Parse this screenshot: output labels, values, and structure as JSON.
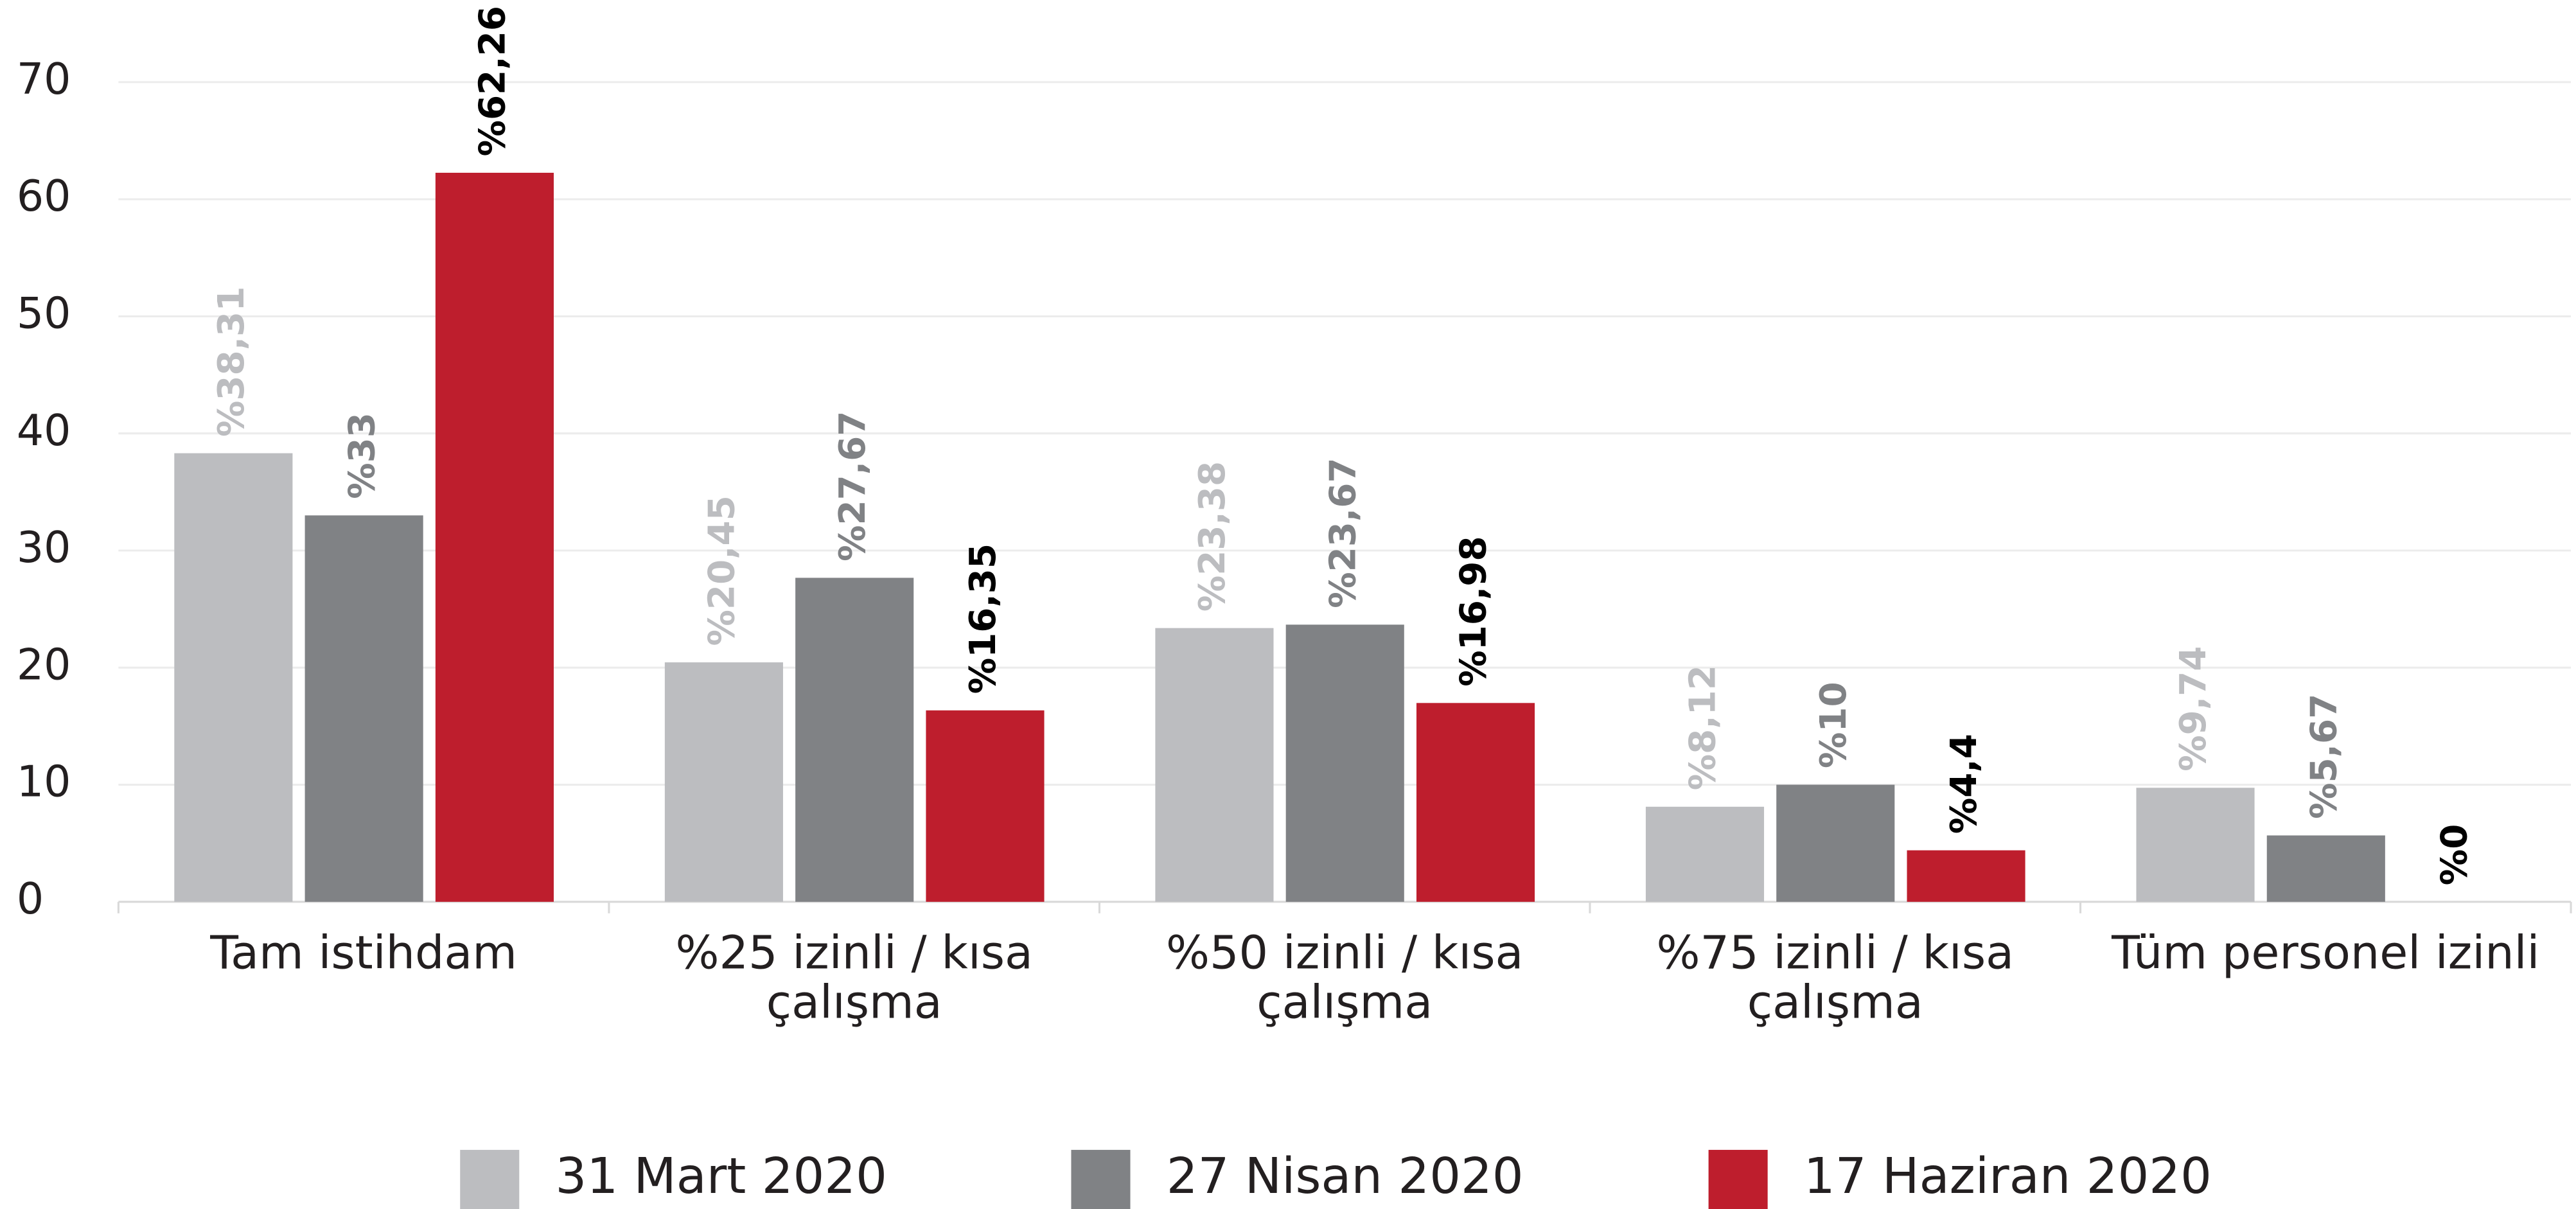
{
  "chart_data": {
    "type": "bar",
    "categories": [
      [
        "Tam istihdam"
      ],
      [
        "%25 izinli / kısa",
        "çalışma"
      ],
      [
        "%50 izinli / kısa",
        "çalışma"
      ],
      [
        "%75 izinli / kısa",
        "çalışma"
      ],
      [
        "Tüm personel izinli"
      ]
    ],
    "series": [
      {
        "name": "31 Mart 2020",
        "color": "#bcbdc0",
        "label_color": "#bcbdc0",
        "values": [
          38.31,
          20.45,
          23.38,
          8.12,
          9.74
        ],
        "value_labels": [
          "%38,31",
          "%20,45",
          "%23,38",
          "%8,12",
          "%9,74"
        ]
      },
      {
        "name": "27 Nisan 2020",
        "color": "#808285",
        "label_color": "#808285",
        "values": [
          33,
          27.67,
          23.67,
          10,
          5.67
        ],
        "value_labels": [
          "%33",
          "%27,67",
          "%23,67",
          "%10",
          "%5,67"
        ]
      },
      {
        "name": "17 Haziran 2020",
        "color": "#be1e2d",
        "label_color": "#000000",
        "values": [
          62.26,
          16.35,
          16.98,
          4.4,
          0
        ],
        "value_labels": [
          "%62,26",
          "%16,35",
          "%16,98",
          "%4,4",
          "%0"
        ]
      }
    ],
    "ylim": [
      0,
      70
    ],
    "yticks": [
      0,
      10,
      20,
      30,
      40,
      50,
      60,
      70
    ],
    "grid": true,
    "legend": "bottom"
  }
}
